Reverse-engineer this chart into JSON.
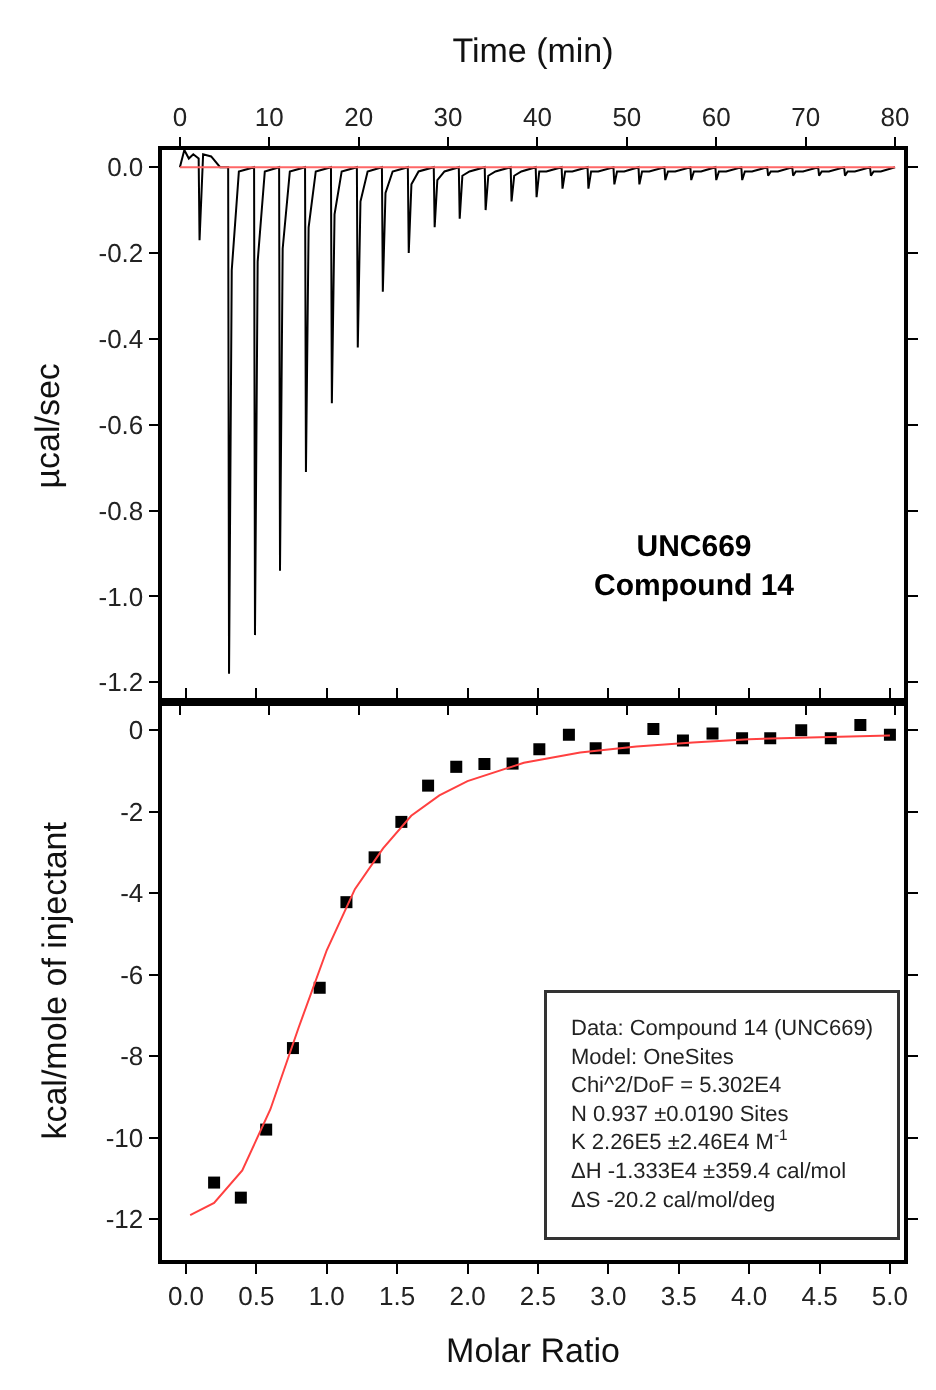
{
  "chart_data": [
    {
      "type": "line",
      "xlabel": "Time (min)",
      "ylabel": "µcal/sec",
      "xlim": [
        -2,
        81
      ],
      "xticks": [
        0,
        10,
        20,
        30,
        40,
        50,
        60,
        70,
        80
      ],
      "ylim": [
        -1.245,
        0.04
      ],
      "yticks": [
        {
          "value": 0,
          "label": "0.0"
        },
        {
          "value": -0.2,
          "label": "-0.2"
        },
        {
          "value": -0.4,
          "label": "-0.4"
        },
        {
          "value": -0.6,
          "label": "-0.6"
        },
        {
          "value": -0.8,
          "label": "-0.8"
        },
        {
          "value": -1.0,
          "label": "-1.0"
        },
        {
          "value": -1.2,
          "label": "-1.2"
        }
      ],
      "annotations": [
        "UNC669\nCompound 14"
      ],
      "series": [
        {
          "color": "#000000",
          "marker": "none",
          "x": [
            0,
            0.5,
            1.0,
            1.5,
            2.1,
            2.2,
            2.6,
            3.5,
            4.5,
            5.4,
            5.5,
            5.8,
            6.6,
            8.3,
            8.4,
            8.7,
            9.5,
            11.1,
            11.2,
            11.5,
            12.3,
            14.0,
            14.1,
            14.4,
            15.2,
            16.9,
            17.0,
            17.3,
            18.1,
            19.8,
            19.9,
            20.2,
            21.0,
            22.6,
            22.7,
            23.0,
            23.8,
            25.5,
            25.6,
            25.9,
            26.7,
            28.4,
            28.5,
            28.8,
            29.6,
            31.2,
            31.3,
            31.6,
            32.4,
            34.1,
            34.2,
            34.5,
            35.3,
            37.0,
            37.1,
            37.4,
            38.2,
            39.8,
            39.9,
            40.2,
            41.0,
            42.7,
            42.8,
            43.1,
            43.9,
            45.6,
            45.7,
            46.0,
            46.8,
            48.5,
            48.6,
            48.9,
            49.7,
            51.3,
            51.4,
            51.7,
            52.5,
            54.2,
            54.3,
            54.6,
            55.4,
            57.1,
            57.2,
            57.5,
            58.3,
            59.9,
            60.0,
            60.3,
            61.1,
            62.8,
            62.9,
            63.2,
            64.0,
            65.7,
            65.8,
            66.1,
            66.9,
            68.5,
            68.6,
            68.9,
            69.7,
            71.4,
            71.5,
            71.8,
            72.6,
            74.3,
            74.4,
            74.7,
            75.5,
            77.2,
            77.3,
            77.6,
            78.4,
            80.0
          ],
          "values": [
            0,
            0.04,
            0.02,
            0.03,
            0.02,
            -0.17,
            0.03,
            0.025,
            0,
            0,
            -1.18,
            -0.24,
            -0.01,
            0,
            -1.09,
            -0.22,
            -0.01,
            0,
            -0.94,
            -0.19,
            -0.01,
            0,
            -0.71,
            -0.14,
            -0.01,
            0,
            -0.55,
            -0.11,
            -0.01,
            0,
            -0.42,
            -0.08,
            -0.01,
            0,
            -0.29,
            -0.06,
            -0.01,
            0,
            -0.2,
            -0.04,
            -0.01,
            0,
            -0.14,
            -0.03,
            -0.01,
            0,
            -0.12,
            -0.02,
            -0.01,
            0,
            -0.1,
            -0.02,
            -0.01,
            0,
            -0.08,
            -0.02,
            -0.01,
            0,
            -0.07,
            -0.01,
            -0.01,
            0,
            -0.05,
            -0.01,
            -0.01,
            0,
            -0.05,
            -0.01,
            -0.01,
            0,
            -0.04,
            -0.01,
            -0.01,
            0,
            -0.04,
            -0.01,
            -0.01,
            0,
            -0.03,
            -0.01,
            -0.01,
            0,
            -0.03,
            -0.01,
            -0.01,
            0,
            -0.03,
            -0.01,
            -0.01,
            0,
            -0.03,
            -0.01,
            -0.01,
            0,
            -0.02,
            -0.01,
            -0.01,
            0,
            -0.02,
            -0.01,
            -0.01,
            0,
            -0.02,
            -0.01,
            -0.01,
            0,
            -0.02,
            -0.01,
            -0.01,
            0,
            -0.02,
            -0.01,
            -0.01,
            0
          ]
        },
        {
          "color": "#ff6666",
          "marker": "none",
          "x": [
            0,
            80
          ],
          "values": [
            0,
            0
          ]
        }
      ]
    },
    {
      "type": "scatter",
      "xlabel": "Molar Ratio",
      "ylabel": "kcal/mole of injectant",
      "xlim": [
        -0.17,
        5.1
      ],
      "xticks": [
        {
          "value": 0,
          "label": "0.0"
        },
        {
          "value": 0.5,
          "label": "0.5"
        },
        {
          "value": 1,
          "label": "1.0"
        },
        {
          "value": 1.5,
          "label": "1.5"
        },
        {
          "value": 2,
          "label": "2.0"
        },
        {
          "value": 2.5,
          "label": "2.5"
        },
        {
          "value": 3,
          "label": "3.0"
        },
        {
          "value": 3.5,
          "label": "3.5"
        },
        {
          "value": 4,
          "label": "4.0"
        },
        {
          "value": 4.5,
          "label": "4.5"
        },
        {
          "value": 5,
          "label": "5.0"
        }
      ],
      "ylim": [
        -13,
        0.7
      ],
      "yticks": [
        0,
        -2,
        -4,
        -6,
        -8,
        -10,
        -12
      ],
      "annotations": [
        "Data: Compound 14 (UNC669)\nModel: OneSites\nChi^2/DoF = 5.302E4\nN 0.937 ±0.0190 Sites\nK 2.26E5 ±2.46E4 M$^{-1}$\nΔH -1.333E4 ±359.4 cal/mol\nΔS -20.2 cal/mol/deg"
      ],
      "series": [
        {
          "color": "#000000",
          "marker": "square",
          "x": [
            0.2,
            0.39,
            0.57,
            0.76,
            0.95,
            1.14,
            1.34,
            1.53,
            1.72,
            1.92,
            2.12,
            2.32,
            2.51,
            2.72,
            2.91,
            3.11,
            3.32,
            3.53,
            3.74,
            3.95,
            4.15,
            4.37,
            4.58,
            4.79,
            5.0
          ],
          "values": [
            -11.1,
            -11.47,
            -9.8,
            -7.8,
            -6.32,
            -4.22,
            -3.12,
            -2.25,
            -1.36,
            -0.9,
            -0.83,
            -0.82,
            -0.47,
            -0.11,
            -0.44,
            -0.44,
            0.03,
            -0.25,
            -0.08,
            -0.2,
            -0.2,
            0,
            -0.2,
            0.13,
            -0.11
          ]
        },
        {
          "type": "line",
          "color": "#ff4040",
          "marker": "none",
          "x": [
            0.03,
            0.2,
            0.4,
            0.6,
            0.8,
            1.0,
            1.2,
            1.4,
            1.6,
            1.8,
            2.0,
            2.4,
            2.8,
            3.2,
            3.6,
            4.0,
            4.5,
            5.0
          ],
          "values": [
            -11.9,
            -11.6,
            -10.8,
            -9.3,
            -7.3,
            -5.4,
            -3.9,
            -2.9,
            -2.1,
            -1.6,
            -1.25,
            -0.8,
            -0.55,
            -0.4,
            -0.3,
            -0.22,
            -0.17,
            -0.13
          ]
        }
      ]
    }
  ]
}
